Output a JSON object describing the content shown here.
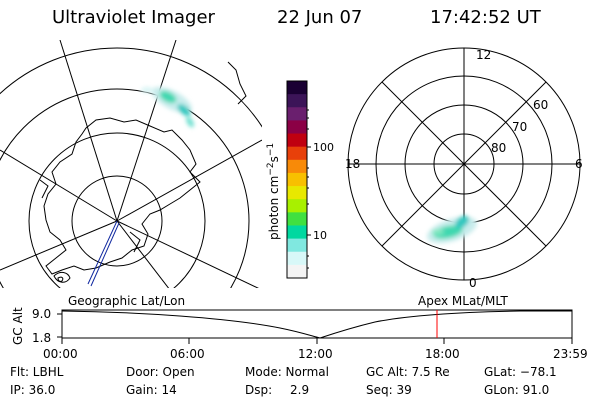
{
  "header": {
    "instrument": "Ultraviolet Imager",
    "date": "22 Jun 07",
    "time": "17:42:52 UT"
  },
  "left_map": {
    "label": "Geographic Lat/Lon"
  },
  "right_polar": {
    "mlt_labels": {
      "top": "12",
      "right": "6",
      "bottom": "0",
      "left": "18"
    },
    "lat_labels": [
      "60",
      "70",
      "80"
    ],
    "label": "Apex MLat/MLT"
  },
  "colorbar": {
    "unit_label": "photon cm",
    "unit_sup1": "−2",
    "unit_mid": "s",
    "unit_sup2": "−1",
    "ticks": [
      "100",
      "10"
    ],
    "colors": [
      "#1a0033",
      "#3c1458",
      "#6a1f6e",
      "#8b0045",
      "#c00010",
      "#e8400a",
      "#f88a08",
      "#f8c000",
      "#e8e800",
      "#a8f000",
      "#40e040",
      "#00d8a0",
      "#80e8e0",
      "#d8f8f8",
      "#f4f4f4"
    ]
  },
  "altitude_plot": {
    "axis_label": "GC Alt",
    "y_ticks": [
      "9.0",
      "1.8"
    ],
    "x_ticks": [
      "00:00",
      "06:00",
      "12:00",
      "18:00",
      "23:59"
    ],
    "marker_time": "17:42:52",
    "marker_color": "#ff0000"
  },
  "info": {
    "flt": "Flt: LBHL",
    "door": "Door: Open",
    "mode": "Mode: Normal",
    "gc_alt": "GC Alt: 7.5 Re",
    "glat": "GLat: −78.1",
    "ip": "IP: 36.0",
    "gain": "Gain: 14",
    "dsp_label": "Dsp:",
    "dsp_value": "2.9",
    "seq": "Seq: 39",
    "glon": "GLon:  91.0"
  }
}
